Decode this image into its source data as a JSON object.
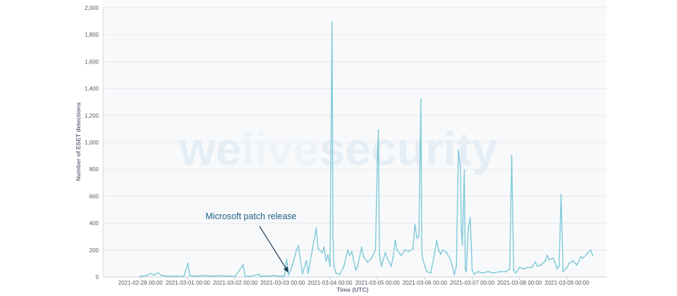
{
  "watermark": {
    "part1": "we",
    "part2": "live",
    "part3": "security"
  },
  "annotation": {
    "text": "Microsoft patch release",
    "target_x": "2021-03-03 00:00"
  },
  "chart_data": {
    "type": "line",
    "xlabel": "Time (UTC)",
    "ylabel": "Number of ESET detections",
    "ylim": [
      0,
      2000
    ],
    "yticks": [
      0,
      200,
      400,
      600,
      800,
      1000,
      1200,
      1400,
      1600,
      1800,
      2000
    ],
    "ytick_labels": [
      "0",
      "200",
      "400",
      "600",
      "800",
      "1,000",
      "1,200",
      "1,400",
      "1,600",
      "1,800",
      "2,000"
    ],
    "xlim": [
      "2021-02-27 05:00",
      "2021-03-09 20:00"
    ],
    "xticks": [
      "2021-02-28 00:00",
      "2021-03-01 00:00",
      "2021-03-02 00:00",
      "2021-03-03 00:00",
      "2021-03-04 00:00",
      "2021-03-05 00:00",
      "2021-03-06 00:00",
      "2021-03-07 00:00",
      "2021-03-08 00:00",
      "2021-03-09 00:00"
    ],
    "grid": true,
    "colors": {
      "line": "#7fcad8",
      "grid": "#e6e9ee",
      "background": "#f8f9fb",
      "annotation": "#1e5f84",
      "watermark_light": "#e5eef4",
      "watermark_mid": "#ecf2f6"
    },
    "points": [
      [
        "2021-02-28 00:00",
        5
      ],
      [
        "2021-02-28 03:00",
        10
      ],
      [
        "2021-02-28 05:00",
        25
      ],
      [
        "2021-02-28 07:00",
        15
      ],
      [
        "2021-02-28 09:00",
        30
      ],
      [
        "2021-02-28 11:00",
        10
      ],
      [
        "2021-02-28 14:00",
        5
      ],
      [
        "2021-02-28 18:00",
        5
      ],
      [
        "2021-02-28 22:00",
        5
      ],
      [
        "2021-03-01 00:00",
        100
      ],
      [
        "2021-03-01 01:00",
        10
      ],
      [
        "2021-03-01 04:00",
        5
      ],
      [
        "2021-03-01 08:00",
        10
      ],
      [
        "2021-03-01 12:00",
        5
      ],
      [
        "2021-03-01 16:00",
        10
      ],
      [
        "2021-03-01 20:00",
        5
      ],
      [
        "2021-03-02 00:00",
        5
      ],
      [
        "2021-03-02 04:00",
        90
      ],
      [
        "2021-03-02 05:00",
        5
      ],
      [
        "2021-03-02 08:00",
        5
      ],
      [
        "2021-03-02 12:00",
        20
      ],
      [
        "2021-03-02 13:00",
        5
      ],
      [
        "2021-03-02 16:00",
        5
      ],
      [
        "2021-03-02 20:00",
        10
      ],
      [
        "2021-03-02 22:00",
        5
      ],
      [
        "2021-03-03 00:00",
        5
      ],
      [
        "2021-03-03 01:00",
        10
      ],
      [
        "2021-03-03 02:00",
        130
      ],
      [
        "2021-03-03 03:00",
        15
      ],
      [
        "2021-03-03 05:00",
        90
      ],
      [
        "2021-03-03 07:00",
        200
      ],
      [
        "2021-03-03 08:00",
        230
      ],
      [
        "2021-03-03 10:00",
        25
      ],
      [
        "2021-03-03 12:00",
        120
      ],
      [
        "2021-03-03 13:00",
        30
      ],
      [
        "2021-03-03 15:00",
        200
      ],
      [
        "2021-03-03 17:00",
        360
      ],
      [
        "2021-03-03 18:00",
        210
      ],
      [
        "2021-03-03 20:00",
        180
      ],
      [
        "2021-03-03 21:00",
        220
      ],
      [
        "2021-03-03 22:00",
        120
      ],
      [
        "2021-03-03 23:00",
        160
      ],
      [
        "2021-03-04 00:00",
        80
      ],
      [
        "2021-03-04 01:00",
        1890
      ],
      [
        "2021-03-04 01:30",
        300
      ],
      [
        "2021-03-04 02:00",
        80
      ],
      [
        "2021-03-04 03:00",
        30
      ],
      [
        "2021-03-04 05:00",
        20
      ],
      [
        "2021-03-04 07:00",
        80
      ],
      [
        "2021-03-04 09:00",
        200
      ],
      [
        "2021-03-04 10:00",
        160
      ],
      [
        "2021-03-04 11:00",
        190
      ],
      [
        "2021-03-04 13:00",
        50
      ],
      [
        "2021-03-04 14:00",
        80
      ],
      [
        "2021-03-04 16:00",
        220
      ],
      [
        "2021-03-04 17:00",
        150
      ],
      [
        "2021-03-04 19:00",
        110
      ],
      [
        "2021-03-04 21:00",
        140
      ],
      [
        "2021-03-04 23:00",
        200
      ],
      [
        "2021-03-05 00:00",
        880
      ],
      [
        "2021-03-05 00:30",
        1090
      ],
      [
        "2021-03-05 01:00",
        170
      ],
      [
        "2021-03-05 02:00",
        80
      ],
      [
        "2021-03-05 04:00",
        180
      ],
      [
        "2021-03-05 05:00",
        140
      ],
      [
        "2021-03-05 07:00",
        80
      ],
      [
        "2021-03-05 08:00",
        150
      ],
      [
        "2021-03-05 09:00",
        270
      ],
      [
        "2021-03-05 10:00",
        200
      ],
      [
        "2021-03-05 12:00",
        160
      ],
      [
        "2021-03-05 14:00",
        200
      ],
      [
        "2021-03-05 16:00",
        190
      ],
      [
        "2021-03-05 18:00",
        210
      ],
      [
        "2021-03-05 19:00",
        390
      ],
      [
        "2021-03-05 20:00",
        290
      ],
      [
        "2021-03-05 21:00",
        300
      ],
      [
        "2021-03-05 22:00",
        1320
      ],
      [
        "2021-03-05 22:30",
        180
      ],
      [
        "2021-03-05 23:00",
        130
      ],
      [
        "2021-03-06 00:00",
        80
      ],
      [
        "2021-03-06 01:00",
        40
      ],
      [
        "2021-03-06 03:00",
        30
      ],
      [
        "2021-03-06 05:00",
        180
      ],
      [
        "2021-03-06 06:00",
        270
      ],
      [
        "2021-03-06 07:00",
        200
      ],
      [
        "2021-03-06 08:00",
        170
      ],
      [
        "2021-03-06 09:00",
        200
      ],
      [
        "2021-03-06 11:00",
        180
      ],
      [
        "2021-03-06 13:00",
        130
      ],
      [
        "2021-03-06 15:00",
        20
      ],
      [
        "2021-03-06 16:00",
        80
      ],
      [
        "2021-03-06 17:00",
        940
      ],
      [
        "2021-03-06 18:00",
        820
      ],
      [
        "2021-03-06 18:30",
        340
      ],
      [
        "2021-03-06 19:00",
        240
      ],
      [
        "2021-03-06 20:00",
        790
      ],
      [
        "2021-03-06 20:30",
        60
      ],
      [
        "2021-03-06 21:00",
        40
      ],
      [
        "2021-03-06 22:00",
        360
      ],
      [
        "2021-03-06 23:00",
        440
      ],
      [
        "2021-03-06 23:30",
        240
      ],
      [
        "2021-03-07 00:00",
        50
      ],
      [
        "2021-03-07 01:00",
        20
      ],
      [
        "2021-03-07 03:00",
        40
      ],
      [
        "2021-03-07 05:00",
        30
      ],
      [
        "2021-03-07 08:00",
        40
      ],
      [
        "2021-03-07 11:00",
        30
      ],
      [
        "2021-03-07 14:00",
        40
      ],
      [
        "2021-03-07 17:00",
        40
      ],
      [
        "2021-03-07 19:00",
        60
      ],
      [
        "2021-03-07 20:00",
        900
      ],
      [
        "2021-03-07 21:00",
        50
      ],
      [
        "2021-03-07 22:00",
        30
      ],
      [
        "2021-03-08 00:00",
        70
      ],
      [
        "2021-03-08 02:00",
        60
      ],
      [
        "2021-03-08 04:00",
        70
      ],
      [
        "2021-03-08 06:00",
        70
      ],
      [
        "2021-03-08 08:00",
        110
      ],
      [
        "2021-03-08 09:00",
        80
      ],
      [
        "2021-03-08 11:00",
        90
      ],
      [
        "2021-03-08 13:00",
        120
      ],
      [
        "2021-03-08 14:00",
        160
      ],
      [
        "2021-03-08 15:00",
        130
      ],
      [
        "2021-03-08 17:00",
        140
      ],
      [
        "2021-03-08 19:00",
        60
      ],
      [
        "2021-03-08 20:00",
        80
      ],
      [
        "2021-03-08 21:00",
        610
      ],
      [
        "2021-03-08 22:00",
        40
      ],
      [
        "2021-03-09 00:00",
        70
      ],
      [
        "2021-03-09 01:00",
        100
      ],
      [
        "2021-03-09 03:00",
        120
      ],
      [
        "2021-03-09 05:00",
        90
      ],
      [
        "2021-03-09 07:00",
        150
      ],
      [
        "2021-03-09 08:00",
        140
      ],
      [
        "2021-03-09 10:00",
        170
      ],
      [
        "2021-03-09 12:00",
        200
      ],
      [
        "2021-03-09 13:00",
        160
      ]
    ]
  }
}
